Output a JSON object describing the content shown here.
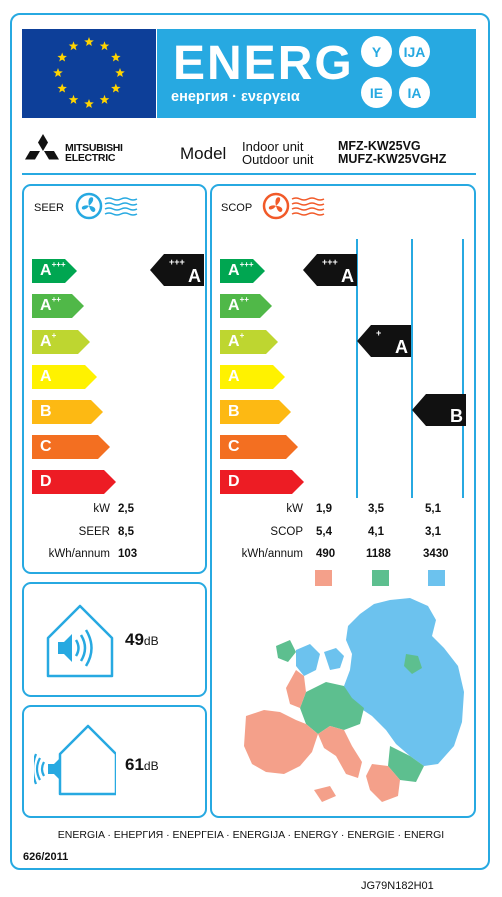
{
  "header": {
    "energy_word": "ENERG",
    "energy_sub": "енергия · ενεργεια",
    "suffixes": [
      "Y",
      "IJA",
      "IE",
      "IA"
    ],
    "colors": {
      "banner": "#27a9e1",
      "flag": "#0d3f99",
      "stars": "#ffd400"
    }
  },
  "brand": {
    "logo_line1": "MITSUBISHI",
    "logo_line2": "ELECTRIC",
    "model_word": "Model",
    "indoor_label": "Indoor unit",
    "outdoor_label": "Outdoor unit",
    "indoor_model": "MFZ-KW25VG",
    "outdoor_model": "MUFZ-KW25VGHZ"
  },
  "scale": [
    {
      "label": "A",
      "sup": "+++",
      "color": "#00a651"
    },
    {
      "label": "A",
      "sup": "++",
      "color": "#50b848"
    },
    {
      "label": "A",
      "sup": "+",
      "color": "#bed630"
    },
    {
      "label": "A",
      "sup": "",
      "color": "#fff200"
    },
    {
      "label": "B",
      "sup": "",
      "color": "#fdb913"
    },
    {
      "label": "C",
      "sup": "",
      "color": "#f36f21"
    },
    {
      "label": "D",
      "sup": "",
      "color": "#ed1c24"
    }
  ],
  "seer": {
    "label": "SEER",
    "rating": {
      "label": "A",
      "sup": "+++"
    },
    "rows": [
      {
        "label": "kW",
        "value": "2,5"
      },
      {
        "label": "SEER",
        "value": "8,5"
      },
      {
        "label": "kWh/annum",
        "value": "103"
      }
    ]
  },
  "scop": {
    "label": "SCOP",
    "zones": [
      {
        "rating": {
          "label": "A",
          "sup": "+++"
        },
        "color": "#f4a08a",
        "kw": "1,9",
        "scop": "5,4",
        "kwh": "490"
      },
      {
        "rating": {
          "label": "A",
          "sup": "+"
        },
        "color": "#5dbf8f",
        "kw": "3,5",
        "scop": "4,1",
        "kwh": "1188"
      },
      {
        "rating": {
          "label": "B",
          "sup": ""
        },
        "color": "#6cc2ee",
        "kw": "5,1",
        "scop": "3,1",
        "kwh": "3430"
      }
    ],
    "row_labels": [
      "kW",
      "SCOP",
      "kWh/annum"
    ]
  },
  "noise": {
    "indoor_value": "49",
    "outdoor_value": "61",
    "unit": "dB"
  },
  "footer": {
    "languages": "ENERGIA · ЕНЕРГИЯ · ΕΝΕΡΓΕΙΑ · ENERGIJA · ENERGY · ENERGIE · ENERGI",
    "regulation": "626/2011",
    "doc_code": "JG79N182H01"
  }
}
